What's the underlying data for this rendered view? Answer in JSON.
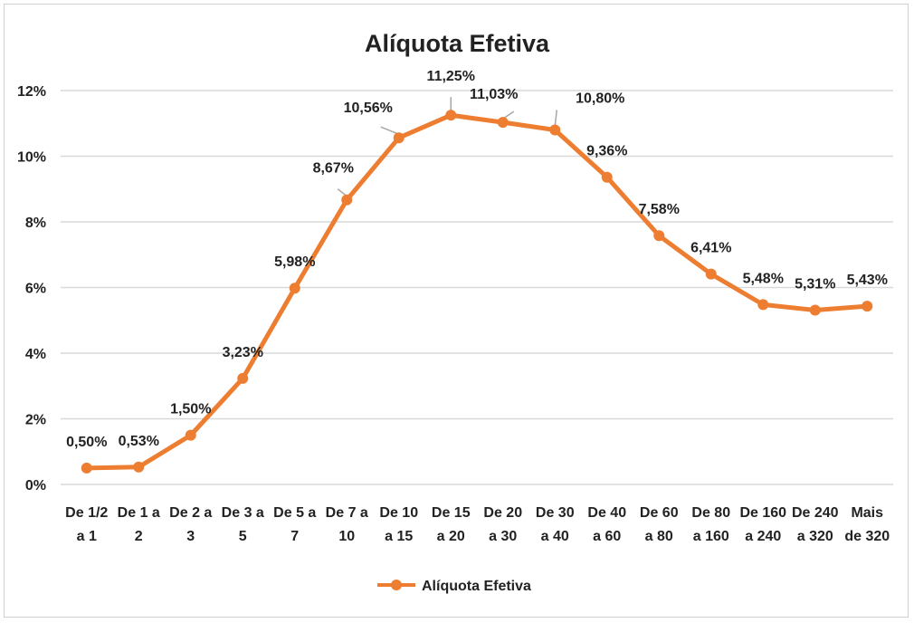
{
  "chart_data": {
    "type": "line",
    "title": "Alíquota Efetiva",
    "xlabel": "",
    "ylabel": "",
    "ylim": [
      0,
      12
    ],
    "y_tick_values": [
      0,
      2,
      4,
      6,
      8,
      10,
      12
    ],
    "y_tick_labels": [
      "0%",
      "2%",
      "4%",
      "6%",
      "8%",
      "10%",
      "12%"
    ],
    "grid": true,
    "legend_position": "bottom",
    "categories": [
      [
        "De 1/2",
        "a 1"
      ],
      [
        "De 1 a",
        "2"
      ],
      [
        "De 2 a",
        "3"
      ],
      [
        "De 3 a",
        "5"
      ],
      [
        "De 5 a",
        "7"
      ],
      [
        "De 7 a",
        "10"
      ],
      [
        "De 10",
        "a 15"
      ],
      [
        "De 15",
        "a 20"
      ],
      [
        "De 20",
        "a 30"
      ],
      [
        "De 30",
        "a 40"
      ],
      [
        "De 40",
        "a 60"
      ],
      [
        "De 60",
        "a 80"
      ],
      [
        "De 80",
        "a 160"
      ],
      [
        "De 160",
        "a 240"
      ],
      [
        "De 240",
        "a 320"
      ],
      [
        "Mais",
        "de 320"
      ]
    ],
    "series": [
      {
        "name": "Alíquota Efetiva",
        "color": "#ED7D31",
        "values": [
          0.5,
          0.53,
          1.5,
          3.23,
          5.98,
          8.67,
          10.56,
          11.25,
          11.03,
          10.8,
          9.36,
          7.58,
          6.41,
          5.48,
          5.31,
          5.43
        ],
        "data_labels": [
          "0,50%",
          "0,53%",
          "1,50%",
          "3,23%",
          "5,98%",
          "8,67%",
          "10,56%",
          "11,25%",
          "11,03%",
          "10,80%",
          "9,36%",
          "7,58%",
          "6,41%",
          "5,48%",
          "5,31%",
          "5,43%"
        ]
      }
    ]
  }
}
